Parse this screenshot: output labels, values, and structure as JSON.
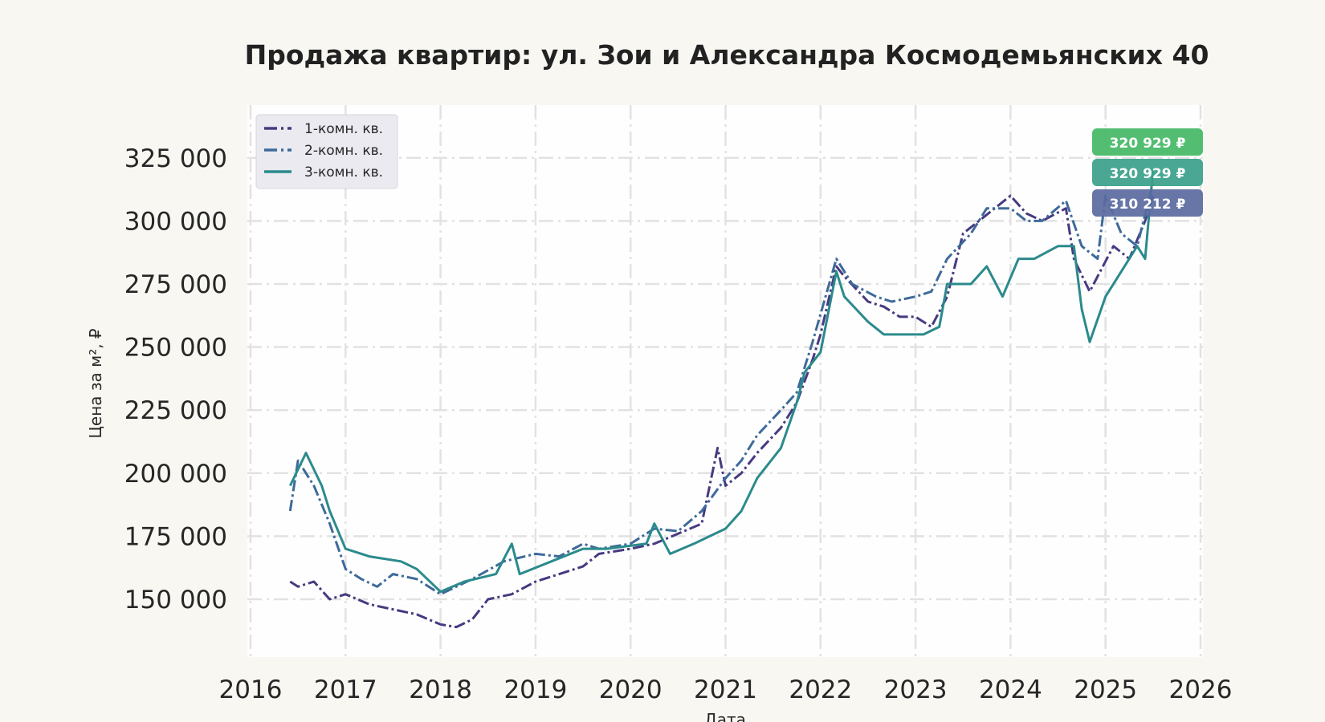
{
  "chart_data": {
    "type": "line",
    "title": "Продажа квартир: ул. Зои и Александра Космодемьянских 40",
    "xlabel": "Дата",
    "ylabel": "Цена за м², ₽",
    "xlim": [
      "2016-01",
      "2026-01"
    ],
    "ylim": [
      132000,
      343000
    ],
    "x_ticks": [
      "2016",
      "2017",
      "2018",
      "2019",
      "2020",
      "2021",
      "2022",
      "2023",
      "2024",
      "2025",
      "2026"
    ],
    "y_ticks": [
      150000,
      175000,
      200000,
      225000,
      250000,
      275000,
      300000,
      325000
    ],
    "y_tick_labels": [
      "150 000",
      "175 000",
      "200 000",
      "225 000",
      "250 000",
      "275 000",
      "300 000",
      "325 000"
    ],
    "grid": true,
    "legend_position": "top-left",
    "series": [
      {
        "name": "1-комн. кв.",
        "color": "#473a80",
        "style": "dash-dot",
        "points": [
          [
            "2016-06",
            157000
          ],
          [
            "2016-07",
            155000
          ],
          [
            "2016-09",
            157000
          ],
          [
            "2016-11",
            150000
          ],
          [
            "2017-01",
            152000
          ],
          [
            "2017-04",
            148000
          ],
          [
            "2017-07",
            146000
          ],
          [
            "2017-10",
            144000
          ],
          [
            "2018-01",
            140000
          ],
          [
            "2018-03",
            139000
          ],
          [
            "2018-05",
            142000
          ],
          [
            "2018-07",
            150000
          ],
          [
            "2018-10",
            152000
          ],
          [
            "2019-01",
            157000
          ],
          [
            "2019-04",
            160000
          ],
          [
            "2019-07",
            163000
          ],
          [
            "2019-09",
            168000
          ],
          [
            "2020-01",
            170000
          ],
          [
            "2020-04",
            172000
          ],
          [
            "2020-07",
            176000
          ],
          [
            "2020-10",
            180000
          ],
          [
            "2020-12",
            210000
          ],
          [
            "2021-01",
            195000
          ],
          [
            "2021-03",
            200000
          ],
          [
            "2021-05",
            208000
          ],
          [
            "2021-08",
            218000
          ],
          [
            "2021-10",
            228000
          ],
          [
            "2021-12",
            245000
          ],
          [
            "2022-01",
            255000
          ],
          [
            "2022-03",
            282000
          ],
          [
            "2022-04",
            278000
          ],
          [
            "2022-07",
            268000
          ],
          [
            "2022-09",
            266000
          ],
          [
            "2022-11",
            262000
          ],
          [
            "2023-01",
            262000
          ],
          [
            "2023-03",
            258000
          ],
          [
            "2023-05",
            270000
          ],
          [
            "2023-07",
            295000
          ],
          [
            "2023-09",
            300000
          ],
          [
            "2023-11",
            305000
          ],
          [
            "2024-01",
            310000
          ],
          [
            "2024-03",
            303000
          ],
          [
            "2024-05",
            300000
          ],
          [
            "2024-08",
            305000
          ],
          [
            "2024-09",
            285000
          ],
          [
            "2024-11",
            272000
          ],
          [
            "2025-02",
            290000
          ],
          [
            "2025-04",
            285000
          ],
          [
            "2025-06",
            300000
          ],
          [
            "2025-07",
            310000
          ]
        ]
      },
      {
        "name": "2-комн. кв.",
        "color": "#3e6a9a",
        "style": "dash-dot",
        "points": [
          [
            "2016-06",
            185000
          ],
          [
            "2016-07",
            205000
          ],
          [
            "2016-09",
            195000
          ],
          [
            "2016-11",
            180000
          ],
          [
            "2017-01",
            162000
          ],
          [
            "2017-03",
            158000
          ],
          [
            "2017-05",
            155000
          ],
          [
            "2017-07",
            160000
          ],
          [
            "2017-10",
            158000
          ],
          [
            "2018-01",
            152000
          ],
          [
            "2018-03",
            155000
          ],
          [
            "2018-05",
            158000
          ],
          [
            "2018-09",
            165000
          ],
          [
            "2019-01",
            168000
          ],
          [
            "2019-04",
            167000
          ],
          [
            "2019-07",
            172000
          ],
          [
            "2019-09",
            170000
          ],
          [
            "2020-01",
            172000
          ],
          [
            "2020-04",
            178000
          ],
          [
            "2020-07",
            177000
          ],
          [
            "2020-10",
            185000
          ],
          [
            "2021-01",
            198000
          ],
          [
            "2021-03",
            205000
          ],
          [
            "2021-05",
            215000
          ],
          [
            "2021-08",
            225000
          ],
          [
            "2021-10",
            232000
          ],
          [
            "2021-12",
            252000
          ],
          [
            "2022-03",
            285000
          ],
          [
            "2022-05",
            275000
          ],
          [
            "2022-08",
            270000
          ],
          [
            "2022-10",
            268000
          ],
          [
            "2023-01",
            270000
          ],
          [
            "2023-03",
            272000
          ],
          [
            "2023-05",
            285000
          ],
          [
            "2023-08",
            295000
          ],
          [
            "2023-10",
            305000
          ],
          [
            "2024-01",
            305000
          ],
          [
            "2024-03",
            300000
          ],
          [
            "2024-05",
            300000
          ],
          [
            "2024-08",
            308000
          ],
          [
            "2024-10",
            290000
          ],
          [
            "2024-12",
            285000
          ],
          [
            "2025-01",
            310000
          ],
          [
            "2025-03",
            295000
          ],
          [
            "2025-05",
            290000
          ],
          [
            "2025-07",
            315000
          ]
        ]
      },
      {
        "name": "3-комн. кв.",
        "color": "#2b8a8c",
        "style": "solid",
        "points": [
          [
            "2016-06",
            195000
          ],
          [
            "2016-08",
            208000
          ],
          [
            "2016-10",
            195000
          ],
          [
            "2016-11",
            185000
          ],
          [
            "2017-01",
            170000
          ],
          [
            "2017-04",
            167000
          ],
          [
            "2017-08",
            165000
          ],
          [
            "2017-10",
            162000
          ],
          [
            "2018-01",
            153000
          ],
          [
            "2018-04",
            157000
          ],
          [
            "2018-08",
            160000
          ],
          [
            "2018-10",
            172000
          ],
          [
            "2018-11",
            160000
          ],
          [
            "2019-03",
            165000
          ],
          [
            "2019-07",
            170000
          ],
          [
            "2019-10",
            170000
          ],
          [
            "2020-03",
            172000
          ],
          [
            "2020-04",
            180000
          ],
          [
            "2020-06",
            168000
          ],
          [
            "2020-09",
            172000
          ],
          [
            "2020-11",
            175000
          ],
          [
            "2021-01",
            178000
          ],
          [
            "2021-03",
            185000
          ],
          [
            "2021-05",
            198000
          ],
          [
            "2021-08",
            210000
          ],
          [
            "2021-10",
            228000
          ],
          [
            "2021-11",
            240000
          ],
          [
            "2022-01",
            248000
          ],
          [
            "2022-03",
            280000
          ],
          [
            "2022-04",
            270000
          ],
          [
            "2022-07",
            260000
          ],
          [
            "2022-09",
            255000
          ],
          [
            "2022-11",
            255000
          ],
          [
            "2023-02",
            255000
          ],
          [
            "2023-04",
            258000
          ],
          [
            "2023-05",
            275000
          ],
          [
            "2023-08",
            275000
          ],
          [
            "2023-10",
            282000
          ],
          [
            "2023-12",
            270000
          ],
          [
            "2024-02",
            285000
          ],
          [
            "2024-04",
            285000
          ],
          [
            "2024-07",
            290000
          ],
          [
            "2024-09",
            290000
          ],
          [
            "2024-10",
            265000
          ],
          [
            "2024-11",
            252000
          ],
          [
            "2025-01",
            270000
          ],
          [
            "2025-03",
            280000
          ],
          [
            "2025-05",
            290000
          ],
          [
            "2025-06",
            285000
          ],
          [
            "2025-07",
            320000
          ]
        ]
      }
    ],
    "end_labels": [
      {
        "text": "310 212 ₽",
        "color": "#5a6aa0"
      },
      {
        "text": "320 929 ₽",
        "color": "#3aa08a"
      },
      {
        "text": "320 929 ₽",
        "color": "#44b865"
      }
    ]
  }
}
